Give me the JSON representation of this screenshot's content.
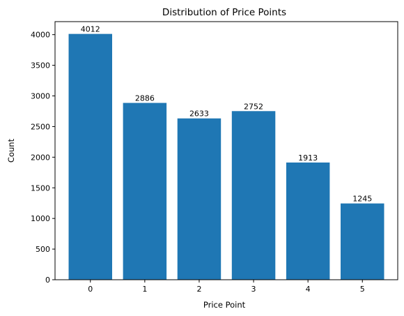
{
  "chart_data": {
    "type": "bar",
    "title": "Distribution of Price Points",
    "xlabel": "Price Point",
    "ylabel": "Count",
    "categories": [
      "0",
      "1",
      "2",
      "3",
      "4",
      "5"
    ],
    "values": [
      4012,
      2886,
      2633,
      2752,
      1913,
      1245
    ],
    "data_labels": [
      "4012",
      "2886",
      "2633",
      "2752",
      "1913",
      "1245"
    ],
    "ylim": [
      0,
      4212.6
    ],
    "yticks": [
      0,
      500,
      1000,
      1500,
      2000,
      2500,
      3000,
      3500,
      4000
    ],
    "ytick_labels": [
      "0",
      "500",
      "1000",
      "1500",
      "2000",
      "2500",
      "3000",
      "3500",
      "4000"
    ],
    "bar_color": "#1f77b4",
    "grid": false,
    "legend": "none"
  }
}
